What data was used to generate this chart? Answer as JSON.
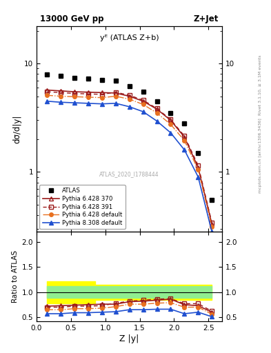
{
  "title_left": "13000 GeV pp",
  "title_right": "Z+Jet",
  "inner_title": "yᴱ (ATLAS Z+b)",
  "watermark": "ATLAS_2020_I1788444",
  "rivet_label": "Rivet 3.1.10, ≥ 3.1M events",
  "mcplots_label": "mcplots.cern.ch [arXiv:1306.3436]",
  "xlabel": "Z |y|",
  "ylabel_top": "dσ/d|y|",
  "ylabel_bottom": "Ratio to ATLAS",
  "x": [
    0.15,
    0.35,
    0.55,
    0.75,
    0.95,
    1.15,
    1.35,
    1.55,
    1.75,
    1.95,
    2.15,
    2.35,
    2.55
  ],
  "atlas_y": [
    7.9,
    7.7,
    7.4,
    7.3,
    7.1,
    7.0,
    6.2,
    5.5,
    4.5,
    3.5,
    2.8,
    1.5,
    0.55
  ],
  "py6_370_y": [
    5.7,
    5.6,
    5.5,
    5.45,
    5.4,
    5.35,
    5.0,
    4.5,
    3.8,
    3.0,
    2.1,
    1.1,
    0.33
  ],
  "py6_391_y": [
    5.5,
    5.4,
    5.3,
    5.25,
    5.2,
    5.45,
    5.1,
    4.6,
    3.85,
    3.05,
    2.15,
    1.15,
    0.34
  ],
  "py6_def_y": [
    5.1,
    5.0,
    4.95,
    4.9,
    4.85,
    5.0,
    4.7,
    4.2,
    3.5,
    2.75,
    1.95,
    1.05,
    0.31
  ],
  "py8_def_y": [
    4.5,
    4.4,
    4.35,
    4.3,
    4.25,
    4.3,
    4.0,
    3.6,
    2.95,
    2.3,
    1.6,
    0.9,
    0.28
  ],
  "ratio_py6_370": [
    0.72,
    0.73,
    0.74,
    0.75,
    0.76,
    0.76,
    0.81,
    0.82,
    0.84,
    0.86,
    0.75,
    0.73,
    0.6
  ],
  "ratio_py6_391": [
    0.7,
    0.7,
    0.72,
    0.72,
    0.73,
    0.78,
    0.82,
    0.84,
    0.86,
    0.87,
    0.77,
    0.77,
    0.62
  ],
  "ratio_py6_def": [
    0.65,
    0.65,
    0.67,
    0.67,
    0.68,
    0.71,
    0.76,
    0.76,
    0.78,
    0.79,
    0.7,
    0.7,
    0.56
  ],
  "ratio_py8_def": [
    0.57,
    0.57,
    0.59,
    0.59,
    0.6,
    0.61,
    0.65,
    0.65,
    0.66,
    0.66,
    0.57,
    0.6,
    0.51
  ],
  "band_yellow_lo": 0.78,
  "band_yellow_hi": 1.22,
  "band_yellow_lo2": 0.85,
  "band_yellow_hi2": 1.15,
  "band_yellow_xbreak": 0.85,
  "band_green_lo": 0.88,
  "band_green_hi": 1.12,
  "color_py6_370": "#9b1a1a",
  "color_py6_391": "#9b1a1a",
  "color_py6_def": "#e87020",
  "color_py8_def": "#2050d0",
  "xlim": [
    0.0,
    2.7
  ],
  "ylim_top_lo": 0.28,
  "ylim_top_hi": 22,
  "ylim_bottom_lo": 0.42,
  "ylim_bottom_hi": 2.2,
  "yticks_top": [
    1,
    10
  ],
  "yticks_bottom": [
    0.5,
    1.0,
    1.5,
    2.0
  ]
}
